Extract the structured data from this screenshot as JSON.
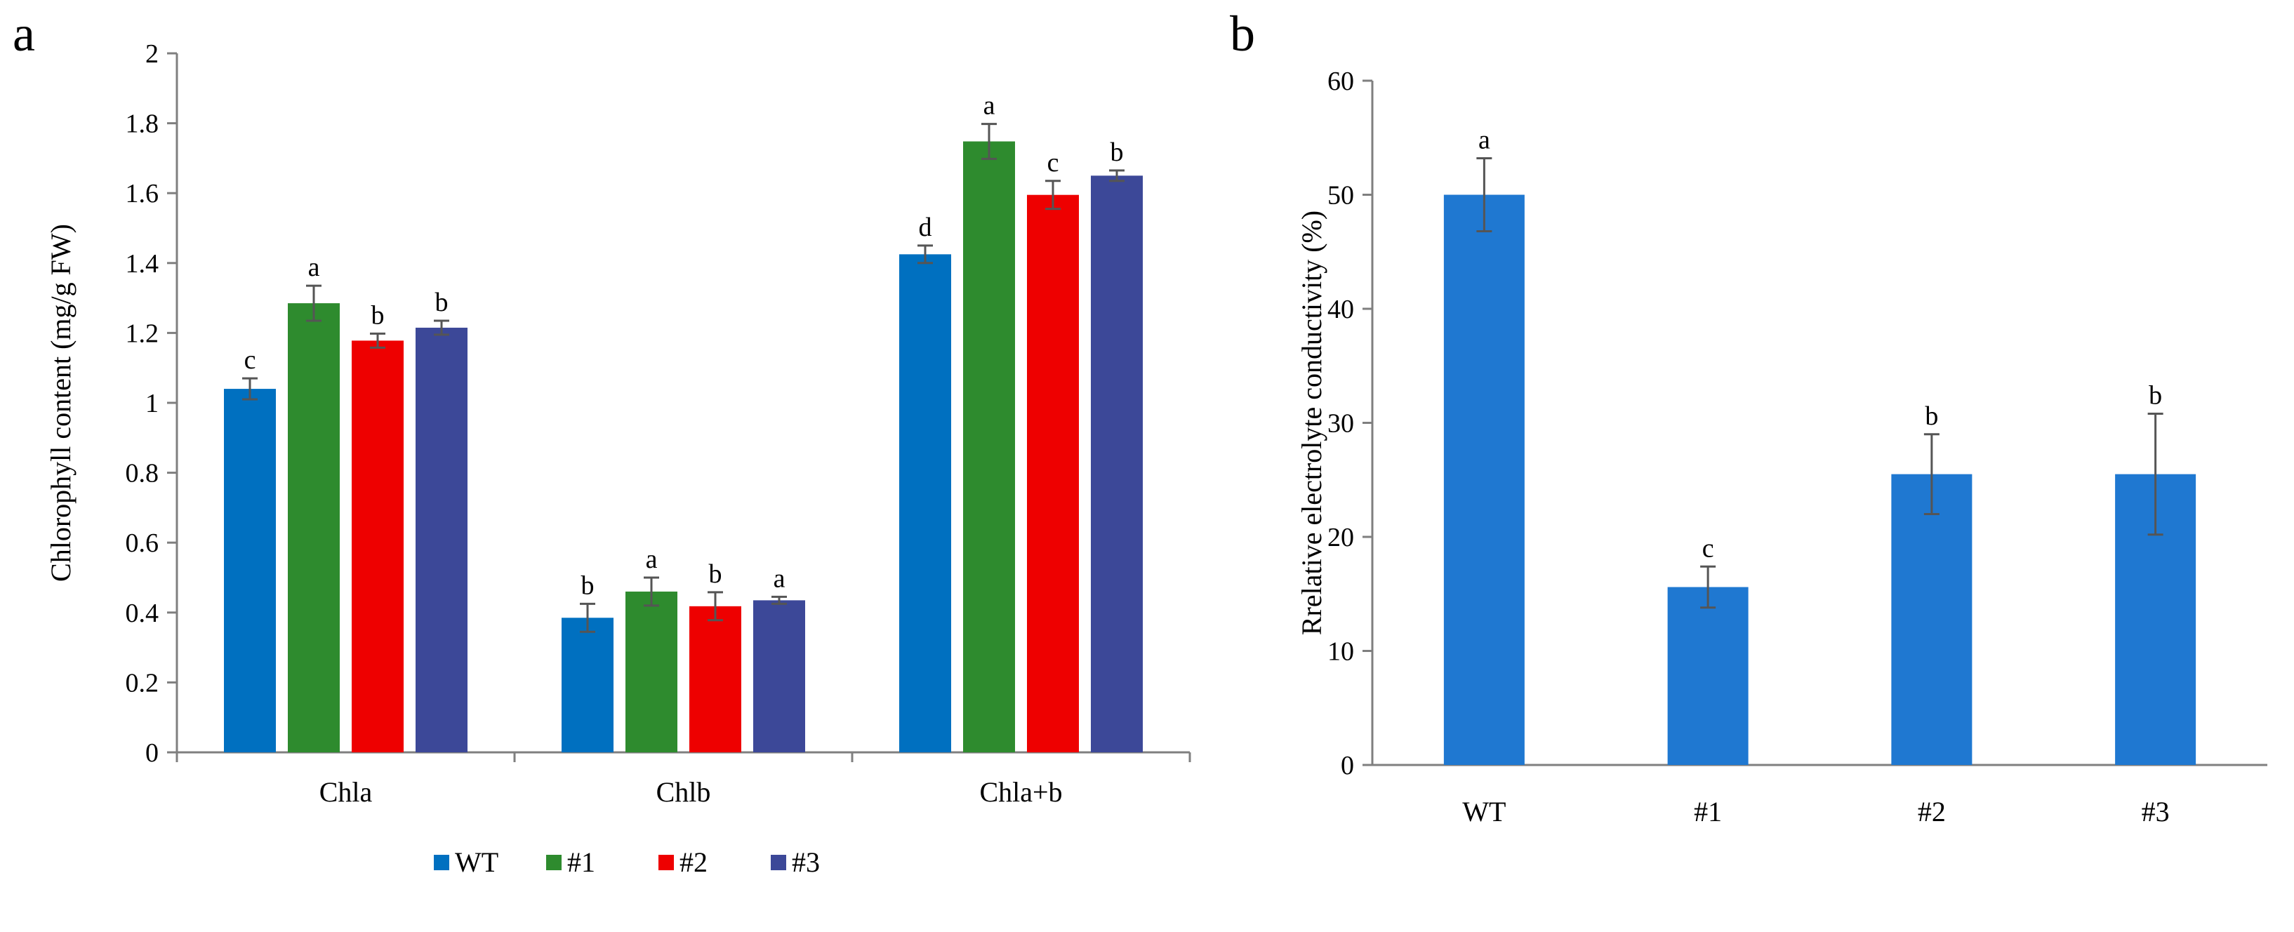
{
  "chart_data": [
    {
      "panel_label": "a",
      "type": "bar",
      "ylabel": "Chlorophyll content  (mg/g FW)",
      "xlabel": "",
      "ylim": [
        0,
        2
      ],
      "yticks": [
        "0",
        "0.2",
        "0.4",
        "0.6",
        "0.8",
        "1",
        "1.2",
        "1.4",
        "1.6",
        "1.8",
        "2"
      ],
      "categories": [
        "Chla",
        "Chlb",
        "Chla+b"
      ],
      "series": [
        {
          "name": "WT",
          "color": "#0070c0",
          "values": [
            1.04,
            0.385,
            1.425
          ],
          "errors": [
            0.03,
            0.04,
            0.025
          ],
          "labels": [
            "c",
            "b",
            "d"
          ]
        },
        {
          "name": "#1",
          "color": "#2e8b2e",
          "values": [
            1.285,
            0.46,
            1.748
          ],
          "errors": [
            0.05,
            0.04,
            0.05
          ],
          "labels": [
            "a",
            "a",
            "a"
          ]
        },
        {
          "name": "#2",
          "color": "#ee0000",
          "values": [
            1.178,
            0.418,
            1.595
          ],
          "errors": [
            0.02,
            0.04,
            0.04
          ],
          "labels": [
            "b",
            "b",
            "c"
          ]
        },
        {
          "name": "#3",
          "color": "#3c4898",
          "values": [
            1.215,
            0.435,
            1.65
          ],
          "errors": [
            0.02,
            0.01,
            0.015
          ],
          "labels": [
            "b",
            "a",
            "b"
          ]
        }
      ],
      "legend": {
        "placement": "bottom"
      }
    },
    {
      "panel_label": "b",
      "type": "bar",
      "ylabel": "Rrelative electrolyte conductivity (%)",
      "xlabel": "",
      "ylim": [
        0,
        60
      ],
      "yticks": [
        "0",
        "10",
        "20",
        "30",
        "40",
        "50",
        "60"
      ],
      "categories": [
        "WT",
        "#1",
        "#2",
        "#3"
      ],
      "color": "#1f78d1",
      "values": [
        50.0,
        15.6,
        25.5,
        25.5
      ],
      "errors": [
        3.2,
        1.8,
        3.5,
        5.3
      ],
      "labels": [
        "a",
        "c",
        "b",
        "b"
      ]
    }
  ]
}
